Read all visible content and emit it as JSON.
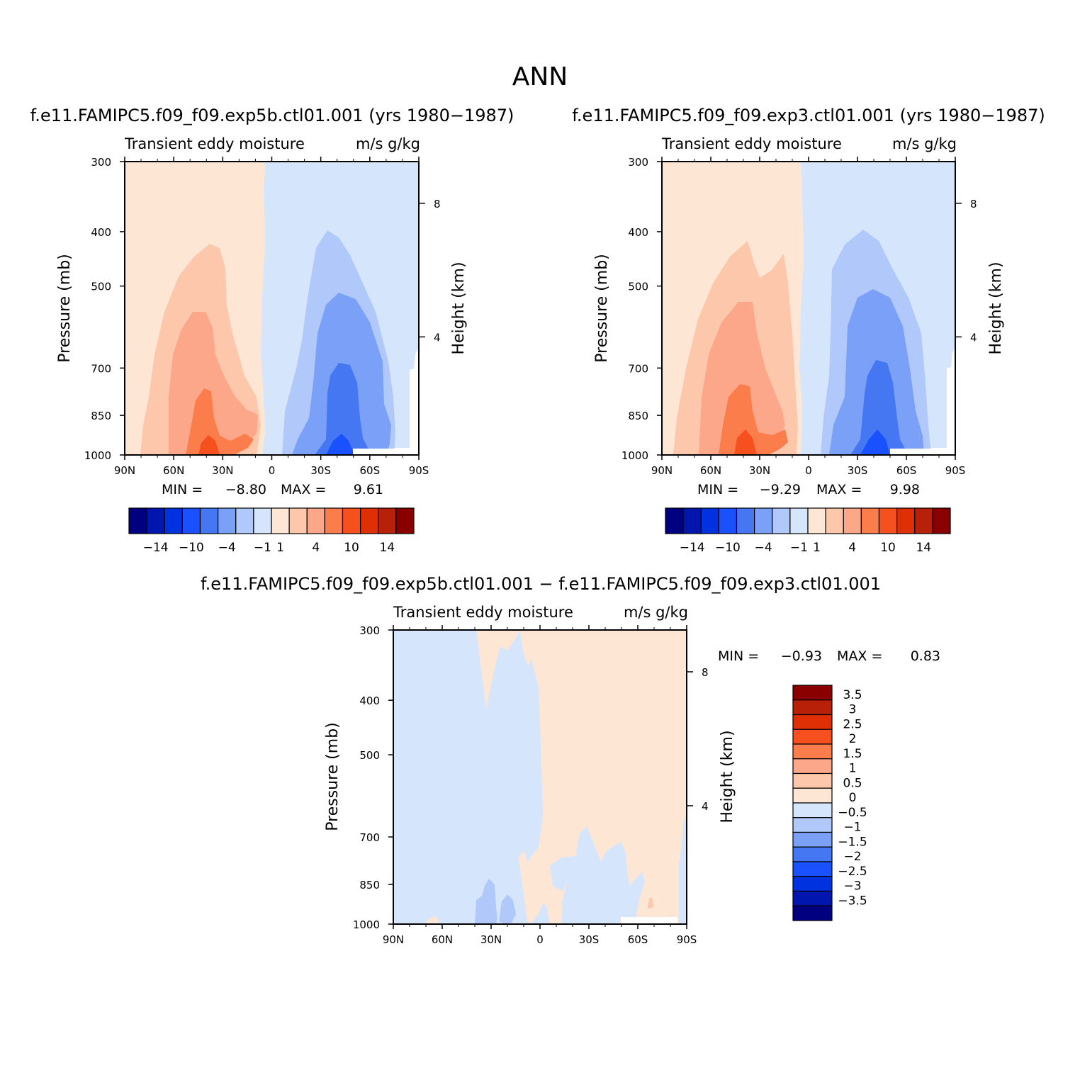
{
  "figure": {
    "title": "ANN"
  },
  "chart_data": [
    {
      "type": "heatmap",
      "panel": "top-left",
      "title": "f.e11.FAMIPC5.f09_f09.exp5b.ctl01.001 (yrs 1980−1987)",
      "subtitle_left": "Transient eddy moisture",
      "subtitle_right": "m/s g/kg",
      "xlabel": "",
      "ylabel": "Pressure (mb)",
      "ylabel_right": "Height (km)",
      "x_ticks": [
        "90N",
        "60N",
        "30N",
        "0",
        "30S",
        "60S",
        "90S"
      ],
      "y_ticks": [
        "300",
        "400",
        "500",
        "700",
        "850",
        "1000"
      ],
      "y_right_ticks": [
        "8",
        "4"
      ],
      "min_label": "MIN =",
      "min_value": "−8.80",
      "max_label": "MAX =",
      "max_value": "9.61",
      "legend_position": "bottom",
      "contour_levels": [
        -14,
        -12,
        -10,
        -8,
        -4,
        -2,
        -1,
        0,
        1,
        2,
        4,
        8,
        10,
        12,
        14
      ],
      "colorbar_labels": [
        "−14",
        "−10",
        "−4",
        "−1",
        "1",
        "4",
        "10",
        "14"
      ]
    },
    {
      "type": "heatmap",
      "panel": "top-right",
      "title": "f.e11.FAMIPC5.f09_f09.exp3.ctl01.001 (yrs 1980−1987)",
      "subtitle_left": "Transient eddy moisture",
      "subtitle_right": "m/s g/kg",
      "xlabel": "",
      "ylabel": "Pressure (mb)",
      "ylabel_right": "Height (km)",
      "x_ticks": [
        "90N",
        "60N",
        "30N",
        "0",
        "30S",
        "60S",
        "90S"
      ],
      "y_ticks": [
        "300",
        "400",
        "500",
        "700",
        "850",
        "1000"
      ],
      "y_right_ticks": [
        "8",
        "4"
      ],
      "min_label": "MIN =",
      "min_value": "−9.29",
      "max_label": "MAX =",
      "max_value": "9.98",
      "legend_position": "bottom",
      "contour_levels": [
        -14,
        -12,
        -10,
        -8,
        -4,
        -2,
        -1,
        0,
        1,
        2,
        4,
        8,
        10,
        12,
        14
      ],
      "colorbar_labels": [
        "−14",
        "−10",
        "−4",
        "−1",
        "1",
        "4",
        "10",
        "14"
      ]
    },
    {
      "type": "heatmap",
      "panel": "bottom",
      "title": "f.e11.FAMIPC5.f09_f09.exp5b.ctl01.001 − f.e11.FAMIPC5.f09_f09.exp3.ctl01.001",
      "subtitle_left": "Transient eddy moisture",
      "subtitle_right": "m/s g/kg",
      "xlabel": "",
      "ylabel": "Pressure (mb)",
      "ylabel_right": "Height (km)",
      "x_ticks": [
        "90N",
        "60N",
        "30N",
        "0",
        "30S",
        "60S",
        "90S"
      ],
      "y_ticks": [
        "300",
        "400",
        "500",
        "700",
        "850",
        "1000"
      ],
      "y_right_ticks": [
        "8",
        "4"
      ],
      "min_label": "MIN =",
      "min_value": "−0.93",
      "max_label": "MAX =",
      "max_value": "0.83",
      "legend_position": "right",
      "contour_levels": [
        -3.5,
        -3,
        -2.5,
        -2,
        -1.5,
        -1,
        -0.5,
        0,
        0.5,
        1,
        1.5,
        2,
        2.5,
        3,
        3.5
      ],
      "colorbar_labels": [
        "3.5",
        "3",
        "2.5",
        "2",
        "1.5",
        "1",
        "0.5",
        "0",
        "−0.5",
        "−1",
        "−1.5",
        "−2",
        "−2.5",
        "−3",
        "−3.5"
      ]
    }
  ],
  "palette": [
    "#000080",
    "#0016ae",
    "#0033e0",
    "#1a51ff",
    "#4677f2",
    "#7aa1f7",
    "#b1c9fa",
    "#d5e6fc",
    "#fee6d4",
    "#fdc7ab",
    "#fca78a",
    "#fb7d4b",
    "#f5501e",
    "#df3005",
    "#b82108",
    "#8a0000"
  ]
}
